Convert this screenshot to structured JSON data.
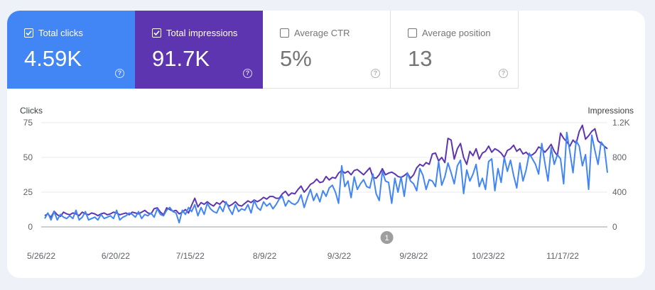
{
  "metrics": {
    "clicks": {
      "label": "Total clicks",
      "value": "4.59K",
      "checked": true,
      "color": "#4285f4"
    },
    "impressions": {
      "label": "Total impressions",
      "value": "91.7K",
      "checked": true,
      "color": "#5e35b1"
    },
    "ctr": {
      "label": "Average CTR",
      "value": "5%",
      "checked": false
    },
    "position": {
      "label": "Average position",
      "value": "13",
      "checked": false
    }
  },
  "help_glyph": "?",
  "annotation": "1",
  "chart_data": {
    "type": "line",
    "left_axis_title": "Clicks",
    "right_axis_title": "Impressions",
    "left_ticks": [
      "0",
      "25",
      "50",
      "75"
    ],
    "right_ticks": [
      "0",
      "400",
      "800",
      "1.2K"
    ],
    "ylim_left": [
      0,
      75
    ],
    "ylim_right": [
      0,
      1200
    ],
    "x_tick_labels": [
      "5/26/22",
      "6/20/22",
      "7/15/22",
      "8/9/22",
      "9/3/22",
      "9/28/22",
      "10/23/22",
      "11/17/22"
    ],
    "annotation_date": "9/19/22",
    "x_start": "5/26/22",
    "x_end": "12/2/22",
    "series": [
      {
        "name": "Total clicks",
        "axis": "left",
        "color": "#4285f4",
        "values": [
          6,
          10,
          5,
          11,
          5,
          9,
          7,
          6,
          8,
          6,
          12,
          5,
          7,
          11,
          5,
          6,
          7,
          5,
          9,
          6,
          7,
          8,
          6,
          12,
          5,
          7,
          8,
          10,
          9,
          7,
          11,
          6,
          9,
          8,
          10,
          7,
          13,
          9,
          8,
          12,
          14,
          11,
          10,
          3,
          12,
          9,
          14,
          11,
          16,
          8,
          14,
          9,
          17,
          13,
          11,
          10,
          15,
          11,
          18,
          13,
          9,
          16,
          11,
          13,
          12,
          16,
          10,
          19,
          14,
          12,
          18,
          15,
          17,
          13,
          16,
          20,
          22,
          15,
          19,
          17,
          16,
          18,
          23,
          14,
          21,
          27,
          19,
          24,
          18,
          26,
          22,
          28,
          30,
          25,
          17,
          44,
          29,
          33,
          21,
          36,
          27,
          31,
          34,
          29,
          28,
          38,
          24,
          19,
          40,
          33,
          32,
          17,
          35,
          25,
          36,
          22,
          39,
          33,
          31,
          26,
          42,
          37,
          27,
          34,
          33,
          29,
          47,
          30,
          36,
          46,
          39,
          31,
          44,
          48,
          24,
          41,
          33,
          38,
          45,
          29,
          35,
          27,
          47,
          49,
          26,
          42,
          32,
          50,
          40,
          48,
          37,
          28,
          46,
          33,
          41,
          53,
          49,
          45,
          38,
          60,
          46,
          33,
          57,
          45,
          52,
          49,
          31,
          68,
          54,
          39,
          62,
          58,
          44,
          52,
          27,
          66,
          55,
          45,
          61,
          58,
          39
        ]
      },
      {
        "name": "Total impressions",
        "axis": "right",
        "color": "#5e35b1",
        "values": [
          130,
          150,
          110,
          180,
          140,
          120,
          170,
          150,
          140,
          160,
          150,
          130,
          170,
          150,
          140,
          160,
          150,
          130,
          150,
          160,
          140,
          150,
          170,
          160,
          140,
          150,
          160,
          140,
          170,
          160,
          150,
          170,
          190,
          160,
          150,
          210,
          220,
          170,
          140,
          220,
          200,
          180,
          190,
          150,
          170,
          200,
          160,
          250,
          330,
          230,
          280,
          260,
          290,
          260,
          240,
          280,
          260,
          300,
          270,
          240,
          260,
          290,
          250,
          240,
          270,
          300,
          280,
          310,
          290,
          310,
          340,
          320,
          350,
          350,
          330,
          330,
          380,
          410,
          360,
          390,
          380,
          430,
          470,
          400,
          440,
          490,
          510,
          550,
          510,
          520,
          580,
          540,
          570,
          560,
          620,
          650,
          620,
          640,
          600,
          650,
          660,
          630,
          600,
          640,
          680,
          570,
          560,
          600,
          670,
          600,
          620,
          630,
          610,
          580,
          570,
          590,
          620,
          560,
          600,
          680,
          720,
          700,
          740,
          720,
          840,
          850,
          760,
          800,
          740,
          1020,
          1000,
          780,
          900,
          960,
          800,
          720,
          870,
          820,
          900,
          780,
          850,
          870,
          930,
          860,
          900,
          880,
          850,
          800,
          880,
          900,
          940,
          870,
          900,
          840,
          860,
          820,
          830,
          860,
          920,
          900,
          860,
          900,
          950,
          870,
          820,
          1080,
          1020,
          980,
          930,
          1000,
          960,
          1100,
          1170,
          1010,
          1050,
          1100,
          1130,
          990,
          960,
          930,
          900
        ]
      }
    ]
  }
}
